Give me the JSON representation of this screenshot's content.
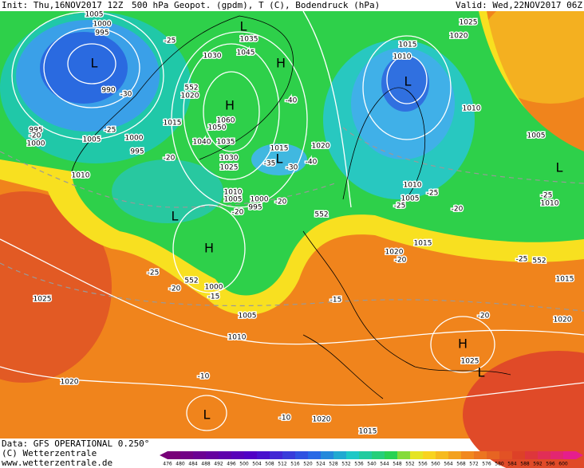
{
  "header": {
    "init": "Init: Thu,16NOV2017 12Z",
    "title": "500 hPa Geopot. (gpdm), T (C), Bodendruck (hPa)",
    "valid": "Valid: Wed,22NOV2017 06Z"
  },
  "footer": {
    "lines": [
      "Data: GFS OPERATIONAL 0.250°",
      "(C) Wetterzentrale",
      "www.wetterzentrale.de"
    ]
  },
  "colorbar": {
    "labels": [
      476,
      480,
      484,
      488,
      492,
      496,
      500,
      504,
      508,
      512,
      516,
      520,
      524,
      528,
      532,
      536,
      540,
      544,
      548,
      552,
      556,
      560,
      564,
      568,
      572,
      576,
      580,
      584,
      588,
      592,
      596,
      600
    ]
  },
  "map": {
    "labels": [
      "1005",
      "1000",
      "995",
      "L",
      "990",
      "-30",
      "995",
      "1000",
      "-20",
      "1005",
      "-25",
      "1000",
      "995",
      "1010",
      "-25",
      "L",
      "1035",
      "1030",
      "1045",
      "H",
      "552",
      "1020",
      "H",
      "1015",
      "1060",
      "1050",
      "1040",
      "1035",
      "-20",
      "1030",
      "1025",
      "1015",
      "L",
      "-35",
      "-30",
      "-40",
      "-40",
      "1020",
      "1010",
      "1005",
      "1000",
      "995",
      "-20",
      "-20",
      "L",
      "552",
      "H",
      "-25",
      "552",
      "1000",
      "-20",
      "-15",
      "1025",
      "1005",
      "1010",
      "1015",
      "1010",
      "L",
      "1020",
      "1025",
      "1010",
      "1005",
      "L",
      "1010",
      "-25",
      "1005",
      "-25",
      "-20",
      "-25",
      "1010",
      "1015",
      "1020",
      "-20",
      "-25",
      "552",
      "1015",
      "-15",
      "-20",
      "1020",
      "H",
      "1025",
      "L",
      "1020",
      "-10",
      "L",
      "-10",
      "1020",
      "1015"
    ]
  }
}
